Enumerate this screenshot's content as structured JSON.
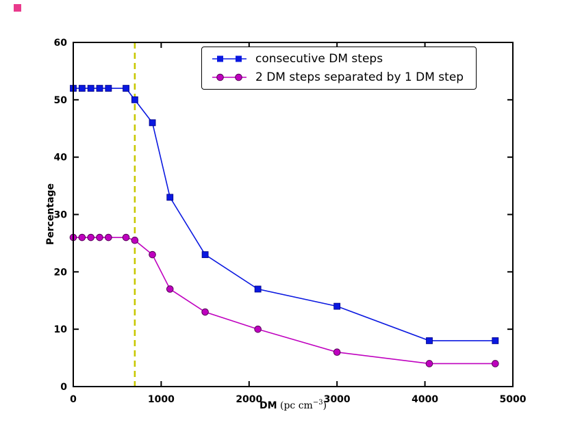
{
  "figure": {
    "background": "#ffffff",
    "corner_marker_color": "#e93a8c"
  },
  "chart_data": {
    "type": "line",
    "title": "",
    "xlabel": {
      "text": "DM (pc cm⁻³)",
      "prefix": "DM",
      "unit": " (pc cm",
      "superscript": "−3",
      "close": ")"
    },
    "ylabel": "Percentage",
    "xlim": [
      0,
      5000
    ],
    "ylim": [
      0,
      60
    ],
    "xticks": [
      0,
      1000,
      2000,
      3000,
      4000,
      5000
    ],
    "yticks": [
      0,
      10,
      20,
      30,
      40,
      50,
      60
    ],
    "grid": false,
    "legend_position": "upper center",
    "vline": {
      "x": 700,
      "color": "#c8c800",
      "style": "dashed"
    },
    "series": [
      {
        "name": "consecutive DM steps",
        "color": "#0a18e0",
        "edge_color": "#000080",
        "marker": "square",
        "points": [
          [
            0,
            52
          ],
          [
            100,
            52
          ],
          [
            200,
            52
          ],
          [
            300,
            52
          ],
          [
            400,
            52
          ],
          [
            600,
            52
          ],
          [
            700,
            50
          ],
          [
            900,
            46
          ],
          [
            1100,
            33
          ],
          [
            1500,
            23
          ],
          [
            2100,
            17
          ],
          [
            3000,
            14
          ],
          [
            4050,
            8
          ],
          [
            4800,
            8
          ]
        ]
      },
      {
        "name": "2 DM steps separated by 1 DM step",
        "color": "#bf00bf",
        "edge_color": "#550055",
        "marker": "circle",
        "points": [
          [
            0,
            26
          ],
          [
            100,
            26
          ],
          [
            200,
            26
          ],
          [
            300,
            26
          ],
          [
            400,
            26
          ],
          [
            600,
            26
          ],
          [
            700,
            25.5
          ],
          [
            900,
            23
          ],
          [
            1100,
            17
          ],
          [
            1500,
            13
          ],
          [
            2100,
            10
          ],
          [
            3000,
            6
          ],
          [
            4050,
            4
          ],
          [
            4800,
            4
          ]
        ]
      }
    ]
  }
}
